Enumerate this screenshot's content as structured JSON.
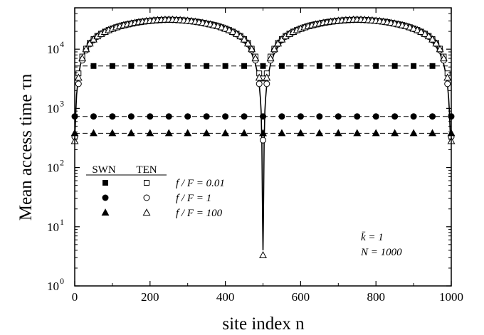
{
  "chart_data": {
    "type": "scatter",
    "xlabel": "site index n",
    "ylabel": "Mean access time τn",
    "xlim": [
      0,
      1000
    ],
    "ylim": [
      1,
      50000
    ],
    "yscale": "log",
    "x_ticks": [
      "0",
      "200",
      "400",
      "600",
      "800",
      "1000"
    ],
    "y_ticks": [
      {
        "base": "10",
        "exp": "0"
      },
      {
        "base": "10",
        "exp": "1"
      },
      {
        "base": "10",
        "exp": "2"
      },
      {
        "base": "10",
        "exp": "3"
      },
      {
        "base": "10",
        "exp": "4"
      }
    ],
    "legend": {
      "col_headers": [
        "SWN",
        "TEN"
      ],
      "rows": [
        {
          "label": "f / F = 0.01",
          "marker": "square"
        },
        {
          "label": "f / F = 1",
          "marker": "circle"
        },
        {
          "label": "f / F = 100",
          "marker": "triangle"
        }
      ]
    },
    "annotations": [
      "k̄ = 1",
      "N = 1000"
    ],
    "swn_series": [
      {
        "name": "SWN f / F = 0.01",
        "marker": "square",
        "x": [
          50,
          100,
          150,
          200,
          250,
          300,
          350,
          400,
          450,
          500,
          550,
          600,
          650,
          700,
          750,
          800,
          850,
          900,
          950
        ],
        "y": [
          5200,
          5200,
          5200,
          5200,
          5200,
          5200,
          5200,
          5200,
          5200,
          5200,
          5200,
          5200,
          5200,
          5200,
          5200,
          5200,
          5200,
          5200,
          5200
        ]
      },
      {
        "name": "SWN f / F = 1",
        "marker": "circle",
        "x": [
          0,
          50,
          100,
          150,
          200,
          250,
          300,
          350,
          400,
          450,
          500,
          550,
          600,
          650,
          700,
          750,
          800,
          850,
          900,
          950,
          1000
        ],
        "y": [
          730,
          730,
          730,
          730,
          730,
          730,
          730,
          730,
          730,
          730,
          730,
          730,
          730,
          730,
          730,
          730,
          730,
          730,
          730,
          730,
          730
        ]
      },
      {
        "name": "SWN f / F = 100",
        "marker": "triangle",
        "x": [
          0,
          50,
          100,
          150,
          200,
          250,
          300,
          350,
          400,
          450,
          500,
          550,
          600,
          650,
          700,
          750,
          800,
          850,
          900,
          950,
          1000
        ],
        "y": [
          380,
          380,
          380,
          380,
          380,
          380,
          380,
          380,
          380,
          380,
          380,
          380,
          380,
          380,
          380,
          380,
          380,
          380,
          380,
          380,
          380
        ]
      }
    ],
    "swn_fit_lines": [
      5200,
      730,
      380
    ],
    "ten_curve": {
      "x": [
        0,
        1,
        3,
        5,
        10,
        15,
        20,
        30,
        40,
        60,
        80,
        100,
        125,
        150,
        175,
        200,
        225,
        250,
        275,
        300,
        325,
        350,
        375,
        400,
        420,
        440,
        460,
        470,
        480,
        485,
        490,
        493,
        495,
        497,
        499,
        500,
        501,
        503,
        505,
        507,
        510,
        515,
        520,
        530,
        540,
        560,
        580,
        600,
        625,
        650,
        675,
        700,
        725,
        750,
        775,
        800,
        825,
        850,
        875,
        900,
        920,
        940,
        960,
        970,
        980,
        985,
        990,
        993,
        995,
        997,
        999,
        1000
      ],
      "y": [
        300,
        420,
        900,
        1700,
        3600,
        5400,
        7000,
        9800,
        12200,
        16000,
        19000,
        22000,
        25000,
        27200,
        29000,
        30300,
        31100,
        31300,
        31100,
        30300,
        29000,
        27200,
        25000,
        22000,
        19000,
        15500,
        11000,
        8500,
        5600,
        4000,
        2500,
        1500,
        900,
        260,
        12,
        4,
        12,
        260,
        900,
        1500,
        2500,
        4000,
        5600,
        8500,
        11000,
        15500,
        19000,
        22000,
        25000,
        27200,
        29000,
        30300,
        31100,
        31300,
        31100,
        30300,
        29000,
        27200,
        25000,
        22000,
        19000,
        15500,
        11000,
        8500,
        5600,
        4000,
        2500,
        1500,
        900,
        420,
        300,
        300
      ]
    },
    "ten_series": [
      {
        "name": "TEN f / F = 0.01",
        "marker": "square",
        "x": [
          10,
          20,
          30,
          40,
          50,
          60,
          70,
          80,
          90,
          100,
          110,
          120,
          130,
          140,
          150,
          160,
          170,
          180,
          190,
          200,
          210,
          220,
          230,
          240,
          250,
          260,
          270,
          280,
          290,
          300,
          310,
          320,
          330,
          340,
          350,
          360,
          370,
          380,
          390,
          400,
          410,
          420,
          430,
          440,
          450,
          460,
          470,
          480,
          490,
          500,
          510,
          520,
          530,
          540,
          550,
          560,
          570,
          580,
          590,
          600,
          610,
          620,
          630,
          640,
          650,
          660,
          670,
          680,
          690,
          700,
          710,
          720,
          730,
          740,
          750,
          760,
          770,
          780,
          790,
          800,
          810,
          820,
          830,
          840,
          850,
          860,
          870,
          880,
          890,
          900,
          910,
          920,
          930,
          940,
          950,
          960,
          970,
          980,
          990
        ],
        "y": [
          3900,
          7500,
          10200,
          12800,
          14800,
          16800,
          18300,
          19800,
          21100,
          22400,
          23500,
          24600,
          25600,
          26400,
          27200,
          28000,
          28700,
          29300,
          29800,
          30300,
          30700,
          31000,
          31200,
          31400,
          31500,
          31400,
          31200,
          31000,
          30700,
          30300,
          29800,
          29300,
          28700,
          28000,
          27200,
          26400,
          25600,
          24600,
          23500,
          22400,
          21100,
          19800,
          18300,
          16800,
          14800,
          12800,
          10200,
          7500,
          3900,
          3200,
          3900,
          7500,
          10200,
          12800,
          14800,
          16800,
          18300,
          19800,
          21100,
          22400,
          23500,
          24600,
          25600,
          26400,
          27200,
          28000,
          28700,
          29300,
          29800,
          30300,
          30700,
          31000,
          31200,
          31400,
          31500,
          31400,
          31200,
          31000,
          30700,
          30300,
          29800,
          29300,
          28700,
          28000,
          27200,
          26400,
          25600,
          24600,
          23500,
          22400,
          21100,
          19800,
          18300,
          16800,
          14800,
          12800,
          10200,
          7500,
          3900
        ]
      },
      {
        "name": "TEN f / F = 1",
        "marker": "circle",
        "x": [
          0,
          10,
          20,
          30,
          40,
          50,
          60,
          70,
          80,
          90,
          100,
          110,
          120,
          130,
          140,
          150,
          160,
          170,
          180,
          190,
          200,
          210,
          220,
          230,
          240,
          250,
          260,
          270,
          280,
          290,
          300,
          310,
          320,
          330,
          340,
          350,
          360,
          370,
          380,
          390,
          400,
          410,
          420,
          430,
          440,
          450,
          460,
          470,
          480,
          490,
          500,
          510,
          520,
          530,
          540,
          550,
          560,
          570,
          580,
          590,
          600,
          610,
          620,
          630,
          640,
          650,
          660,
          670,
          680,
          690,
          700,
          710,
          720,
          730,
          740,
          750,
          760,
          770,
          780,
          790,
          800,
          810,
          820,
          830,
          840,
          850,
          860,
          870,
          880,
          890,
          900,
          910,
          920,
          930,
          940,
          950,
          960,
          970,
          980,
          990,
          1000
        ],
        "y": [
          330,
          2600,
          6500,
          9600,
          12200,
          14300,
          16300,
          17900,
          19400,
          20800,
          22000,
          23200,
          24300,
          25200,
          26100,
          26900,
          27700,
          28400,
          29000,
          29600,
          30100,
          30500,
          30800,
          31100,
          31300,
          31400,
          31300,
          31100,
          30800,
          30500,
          30100,
          29600,
          29000,
          28400,
          27700,
          26900,
          26100,
          25200,
          24300,
          23200,
          22000,
          20800,
          19400,
          17900,
          16300,
          14300,
          12200,
          9600,
          6500,
          2600,
          290,
          2600,
          6500,
          9600,
          12200,
          14300,
          16300,
          17900,
          19400,
          20800,
          22000,
          23200,
          24300,
          25200,
          26100,
          26900,
          27700,
          28400,
          29000,
          29600,
          30100,
          30500,
          30800,
          31100,
          31300,
          31400,
          31300,
          31100,
          30800,
          30500,
          30100,
          29600,
          29000,
          28400,
          27700,
          26900,
          26100,
          25200,
          24300,
          23200,
          22000,
          20800,
          19400,
          17900,
          16300,
          14300,
          12200,
          9600,
          6500,
          2600,
          330
        ]
      },
      {
        "name": "TEN f / F = 100",
        "marker": "triangle",
        "x": [
          0,
          10,
          20,
          30,
          40,
          50,
          60,
          70,
          80,
          90,
          100,
          110,
          120,
          130,
          140,
          150,
          160,
          170,
          180,
          190,
          200,
          210,
          220,
          230,
          240,
          250,
          260,
          270,
          280,
          290,
          300,
          310,
          320,
          330,
          340,
          350,
          360,
          370,
          380,
          390,
          400,
          410,
          420,
          430,
          440,
          450,
          460,
          470,
          480,
          490,
          500,
          510,
          520,
          530,
          540,
          550,
          560,
          570,
          580,
          590,
          600,
          610,
          620,
          630,
          640,
          650,
          660,
          670,
          680,
          690,
          700,
          710,
          720,
          730,
          740,
          750,
          760,
          770,
          780,
          790,
          800,
          810,
          820,
          830,
          840,
          850,
          860,
          870,
          880,
          890,
          900,
          910,
          920,
          930,
          940,
          950,
          960,
          970,
          980,
          990,
          1000
        ],
        "y": [
          280,
          3300,
          7000,
          10000,
          12500,
          14600,
          16500,
          18100,
          19600,
          21000,
          22200,
          23400,
          24500,
          25400,
          26300,
          27100,
          27900,
          28600,
          29200,
          29800,
          30300,
          30700,
          31000,
          31300,
          31500,
          31600,
          31500,
          31300,
          31000,
          30700,
          30300,
          29800,
          29200,
          28600,
          27900,
          27100,
          26300,
          25400,
          24500,
          23400,
          22200,
          21000,
          19600,
          18100,
          16500,
          14600,
          12500,
          10000,
          7000,
          3300,
          3.3,
          3300,
          7000,
          10000,
          12500,
          14600,
          16500,
          18100,
          19600,
          21000,
          22200,
          23400,
          24500,
          25400,
          26300,
          27100,
          27900,
          28600,
          29200,
          29800,
          30300,
          30700,
          31000,
          31300,
          31500,
          31600,
          31500,
          31300,
          31000,
          30700,
          30300,
          29800,
          29200,
          28600,
          27900,
          27100,
          26300,
          25400,
          24500,
          23400,
          22200,
          21000,
          19600,
          18100,
          16500,
          14600,
          12500,
          10000,
          7000,
          3300,
          280
        ]
      }
    ]
  }
}
